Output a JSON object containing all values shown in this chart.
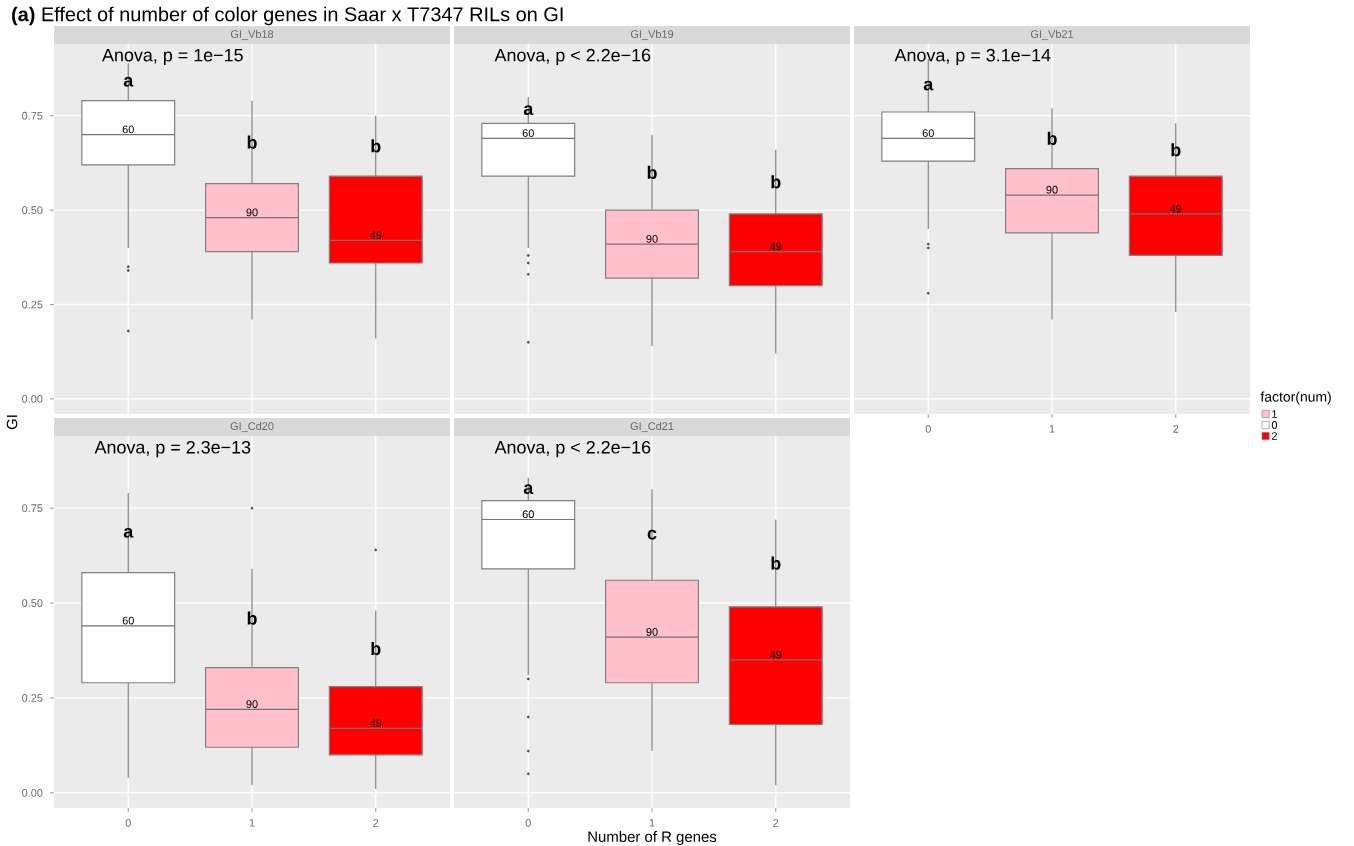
{
  "chart_data": [
    {
      "type": "box",
      "title": "GI_Vb18",
      "subtitle": "**(a)** Effect of number of color genes in Saar x T7347 RILs on GI",
      "ylabel": "GI",
      "categories": [
        "0",
        "1",
        "2"
      ],
      "ylim": [
        -0.04,
        0.94
      ],
      "yticks": [
        {
          "value": 0,
          "label": "0.00"
        },
        {
          "value": 0.25,
          "label": "0.25"
        },
        {
          "value": 0.5,
          "label": "0.50"
        },
        {
          "value": 0.75,
          "label": "0.75"
        }
      ],
      "grid": true,
      "tick_labels": "y",
      "series": [
        {
          "color": "#ffc0cb",
          "boxes": [
            null,
            {
              "low": 0.21,
              "q1": 0.39,
              "median": 0.48,
              "q3": 0.57,
              "high": 0.79
            },
            null
          ]
        },
        {
          "color": "#ffffff",
          "boxes": [
            {
              "low": 0.4,
              "q1": 0.62,
              "median": 0.7,
              "q3": 0.79,
              "high": 0.89,
              "outliers": [
                0.35,
                0.34,
                0.18
              ]
            },
            null,
            null
          ]
        },
        {
          "color": "#ff0000",
          "boxes": [
            null,
            null,
            {
              "low": 0.16,
              "q1": 0.36,
              "median": 0.42,
              "q3": 0.59,
              "high": 0.75
            }
          ]
        }
      ],
      "annotations": [
        "Anova, p = 1e−15",
        "60",
        "90",
        "49",
        "a",
        "b",
        "b"
      ]
    },
    {
      "type": "box",
      "title": "GI_Vb19",
      "categories": [
        "0",
        "1",
        "2"
      ],
      "ylim": [
        -0.04,
        0.94
      ],
      "yticks": [
        {
          "value": 0,
          "label": null
        },
        {
          "value": 0.25,
          "label": null
        },
        {
          "value": 0.5,
          "label": null
        },
        {
          "value": 0.75,
          "label": null
        }
      ],
      "grid": true,
      "tick_labels": false,
      "series": [
        {
          "color": "#ffc0cb",
          "boxes": [
            null,
            {
              "low": 0.14,
              "q1": 0.32,
              "median": 0.41,
              "q3": 0.5,
              "high": 0.7
            },
            null
          ]
        },
        {
          "color": "#ffffff",
          "boxes": [
            {
              "low": 0.4,
              "q1": 0.59,
              "median": 0.69,
              "q3": 0.73,
              "high": 0.8,
              "outliers": [
                0.38,
                0.36,
                0.33,
                0.15
              ]
            },
            null,
            null
          ]
        },
        {
          "color": "#ff0000",
          "boxes": [
            null,
            null,
            {
              "low": 0.12,
              "q1": 0.3,
              "median": 0.39,
              "q3": 0.49,
              "high": 0.66
            }
          ]
        }
      ],
      "annotations": [
        "Anova, p < 2.2e−16",
        "60",
        "90",
        "49",
        "a",
        "b",
        "b"
      ]
    },
    {
      "type": "box",
      "title": "GI_Vb21",
      "categories": [
        "0",
        "1",
        "2"
      ],
      "ylim": [
        -0.04,
        0.94
      ],
      "yticks": [
        {
          "value": 0,
          "label": null
        },
        {
          "value": 0.25,
          "label": null
        },
        {
          "value": 0.5,
          "label": null
        },
        {
          "value": 0.75,
          "label": null
        }
      ],
      "grid": true,
      "tick_labels": "x",
      "legend": "right",
      "legend_title": "factor(num)",
      "series": [
        {
          "name": "1",
          "color": "#ffc0cb",
          "boxes": [
            null,
            {
              "low": 0.21,
              "q1": 0.44,
              "median": 0.54,
              "q3": 0.61,
              "high": 0.77
            },
            null
          ]
        },
        {
          "name": "0",
          "color": "#ffffff",
          "boxes": [
            {
              "low": 0.45,
              "q1": 0.63,
              "median": 0.69,
              "q3": 0.76,
              "high": 0.9,
              "outliers": [
                0.41,
                0.4,
                0.28
              ]
            },
            null,
            null
          ]
        },
        {
          "name": "2",
          "color": "#ff0000",
          "boxes": [
            null,
            null,
            {
              "low": 0.23,
              "q1": 0.38,
              "median": 0.49,
              "q3": 0.59,
              "high": 0.73
            }
          ]
        }
      ],
      "annotations": [
        "Anova, p = 3.1e−14",
        "60",
        "90",
        "49",
        "a",
        "b",
        "b"
      ]
    },
    {
      "type": "box",
      "title": "GI_Cd20",
      "categories": [
        "0",
        "1",
        "2"
      ],
      "ylim": [
        -0.04,
        0.94
      ],
      "yticks": [
        {
          "value": 0,
          "label": "0.00"
        },
        {
          "value": 0.25,
          "label": "0.25"
        },
        {
          "value": 0.5,
          "label": "0.50"
        },
        {
          "value": 0.75,
          "label": "0.75"
        }
      ],
      "grid": true,
      "series": [
        {
          "color": "#ffc0cb",
          "boxes": [
            null,
            {
              "low": 0.02,
              "q1": 0.12,
              "median": 0.22,
              "q3": 0.33,
              "high": 0.59,
              "outliers": [
                0.75
              ]
            },
            null
          ]
        },
        {
          "color": "#ffffff",
          "boxes": [
            {
              "low": 0.04,
              "q1": 0.29,
              "median": 0.44,
              "q3": 0.58,
              "high": 0.79
            },
            null,
            null
          ]
        },
        {
          "color": "#ff0000",
          "boxes": [
            null,
            null,
            {
              "low": 0.01,
              "q1": 0.1,
              "median": 0.17,
              "q3": 0.28,
              "high": 0.48,
              "outliers": [
                0.64
              ]
            }
          ]
        }
      ],
      "annotations": [
        "Anova, p = 2.3e−13",
        "60",
        "90",
        "49",
        "a",
        "b",
        "b"
      ]
    },
    {
      "type": "box",
      "title": "GI_Cd21",
      "xlabel": "Number of R genes",
      "categories": [
        "0",
        "1",
        "2"
      ],
      "ylim": [
        -0.04,
        0.94
      ],
      "yticks": [
        {
          "value": 0,
          "label": null
        },
        {
          "value": 0.25,
          "label": null
        },
        {
          "value": 0.5,
          "label": null
        },
        {
          "value": 0.75,
          "label": null
        }
      ],
      "grid": true,
      "tick_labels": "x",
      "series": [
        {
          "color": "#ffc0cb",
          "boxes": [
            null,
            {
              "low": 0.11,
              "q1": 0.29,
              "median": 0.41,
              "q3": 0.56,
              "high": 0.8
            },
            null
          ]
        },
        {
          "color": "#ffffff",
          "boxes": [
            {
              "low": 0.31,
              "q1": 0.59,
              "median": 0.72,
              "q3": 0.77,
              "high": 0.83,
              "outliers": [
                0.3,
                0.2,
                0.11,
                0.05
              ]
            },
            null,
            null
          ]
        },
        {
          "color": "#ff0000",
          "boxes": [
            null,
            null,
            {
              "low": 0.02,
              "q1": 0.18,
              "median": 0.35,
              "q3": 0.49,
              "high": 0.72
            }
          ]
        }
      ],
      "annotations": [
        "Anova, p < 2.2e−16",
        "60",
        "90",
        "49",
        "a",
        "c",
        "b"
      ]
    }
  ]
}
